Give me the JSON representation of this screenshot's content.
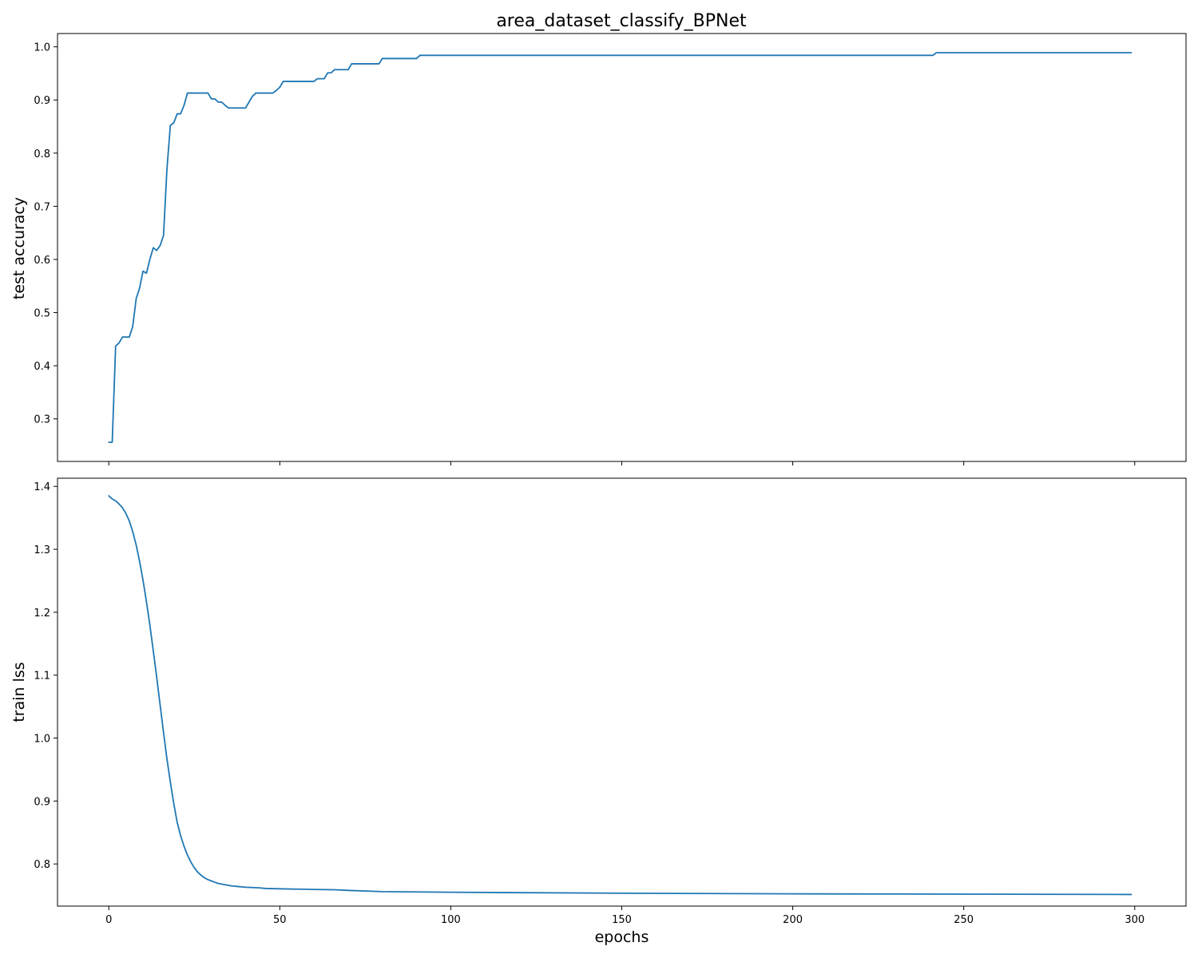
{
  "colors": {
    "series": "#1f77b4",
    "axes": "#000000",
    "background": "#ffffff"
  },
  "chart_data": [
    {
      "type": "line",
      "title": "area_dataset_classify_BPNet",
      "xlabel": "",
      "ylabel": "test accuracy",
      "xlim": [
        -15,
        315
      ],
      "ylim": [
        0.22,
        1.025
      ],
      "xticks": [
        0,
        50,
        100,
        150,
        200,
        250,
        300
      ],
      "xtick_labels_visible": false,
      "yticks": [
        0.3,
        0.4,
        0.5,
        0.6,
        0.7,
        0.8,
        0.9,
        1.0
      ],
      "ytick_labels": [
        "0.3",
        "0.4",
        "0.5",
        "0.6",
        "0.7",
        "0.8",
        "0.9",
        "1.0"
      ],
      "grid": false,
      "series": [
        {
          "name": "test accuracy",
          "x": [
            0,
            1,
            2,
            3,
            4,
            5,
            6,
            7,
            8,
            9,
            10,
            11,
            12,
            13,
            14,
            15,
            16,
            17,
            18,
            19,
            20,
            21,
            22,
            23,
            24,
            25,
            26,
            27,
            28,
            29,
            30,
            31,
            32,
            33,
            34,
            35,
            36,
            37,
            38,
            39,
            40,
            41,
            42,
            43,
            44,
            45,
            46,
            47,
            48,
            49,
            50,
            51,
            52,
            53,
            54,
            55,
            56,
            57,
            58,
            59,
            60,
            61,
            62,
            63,
            64,
            65,
            66,
            67,
            68,
            69,
            70,
            71,
            72,
            73,
            74,
            75,
            76,
            77,
            78,
            79,
            80,
            81,
            82,
            83,
            84,
            85,
            86,
            87,
            88,
            89,
            90,
            91,
            92,
            93,
            95,
            100,
            120,
            150,
            180,
            200,
            220,
            240,
            241,
            242,
            243,
            245,
            260,
            280,
            299
          ],
          "values": [
            0.256,
            0.256,
            0.437,
            0.443,
            0.454,
            0.454,
            0.454,
            0.474,
            0.526,
            0.546,
            0.578,
            0.574,
            0.6,
            0.622,
            0.617,
            0.626,
            0.645,
            0.77,
            0.852,
            0.857,
            0.874,
            0.874,
            0.89,
            0.913,
            0.913,
            0.913,
            0.913,
            0.913,
            0.913,
            0.913,
            0.902,
            0.902,
            0.896,
            0.896,
            0.89,
            0.885,
            0.885,
            0.885,
            0.885,
            0.885,
            0.885,
            0.896,
            0.907,
            0.913,
            0.913,
            0.913,
            0.913,
            0.913,
            0.913,
            0.918,
            0.924,
            0.935,
            0.935,
            0.935,
            0.935,
            0.935,
            0.935,
            0.935,
            0.935,
            0.935,
            0.935,
            0.94,
            0.94,
            0.94,
            0.951,
            0.951,
            0.957,
            0.957,
            0.957,
            0.957,
            0.957,
            0.968,
            0.968,
            0.968,
            0.968,
            0.968,
            0.968,
            0.968,
            0.968,
            0.968,
            0.978,
            0.978,
            0.978,
            0.978,
            0.978,
            0.978,
            0.978,
            0.978,
            0.978,
            0.978,
            0.978,
            0.984,
            0.984,
            0.984,
            0.984,
            0.984,
            0.984,
            0.984,
            0.984,
            0.984,
            0.984,
            0.984,
            0.984,
            0.989,
            0.989,
            0.989,
            0.989,
            0.989,
            0.989
          ]
        }
      ]
    },
    {
      "type": "line",
      "title": "",
      "xlabel": "epochs",
      "ylabel": "train lss",
      "xlim": [
        -15,
        315
      ],
      "ylim": [
        0.733,
        1.413
      ],
      "xticks": [
        0,
        50,
        100,
        150,
        200,
        250,
        300
      ],
      "xtick_labels": [
        "0",
        "50",
        "100",
        "150",
        "200",
        "250",
        "300"
      ],
      "yticks": [
        0.8,
        0.9,
        1.0,
        1.1,
        1.2,
        1.3,
        1.4
      ],
      "ytick_labels": [
        "0.8",
        "0.9",
        "1.0",
        "1.1",
        "1.2",
        "1.3",
        "1.4"
      ],
      "grid": false,
      "series": [
        {
          "name": "train loss",
          "x": [
            0,
            1,
            2,
            3,
            4,
            5,
            6,
            7,
            8,
            9,
            10,
            11,
            12,
            13,
            14,
            15,
            16,
            17,
            18,
            19,
            20,
            21,
            22,
            23,
            24,
            25,
            26,
            27,
            28,
            29,
            30,
            31,
            32,
            33,
            34,
            35,
            36,
            38,
            40,
            42,
            44,
            46,
            50,
            55,
            60,
            66,
            70,
            80,
            100,
            150,
            200,
            250,
            299
          ],
          "values": [
            1.385,
            1.38,
            1.377,
            1.372,
            1.366,
            1.357,
            1.345,
            1.328,
            1.307,
            1.281,
            1.251,
            1.217,
            1.18,
            1.139,
            1.097,
            1.053,
            1.009,
            0.967,
            0.93,
            0.896,
            0.866,
            0.845,
            0.828,
            0.814,
            0.803,
            0.794,
            0.787,
            0.782,
            0.778,
            0.775,
            0.773,
            0.771,
            0.769,
            0.768,
            0.767,
            0.766,
            0.765,
            0.764,
            0.763,
            0.7625,
            0.762,
            0.761,
            0.7605,
            0.76,
            0.7595,
            0.759,
            0.758,
            0.756,
            0.755,
            0.7535,
            0.7525,
            0.752,
            0.7515
          ]
        }
      ]
    }
  ]
}
